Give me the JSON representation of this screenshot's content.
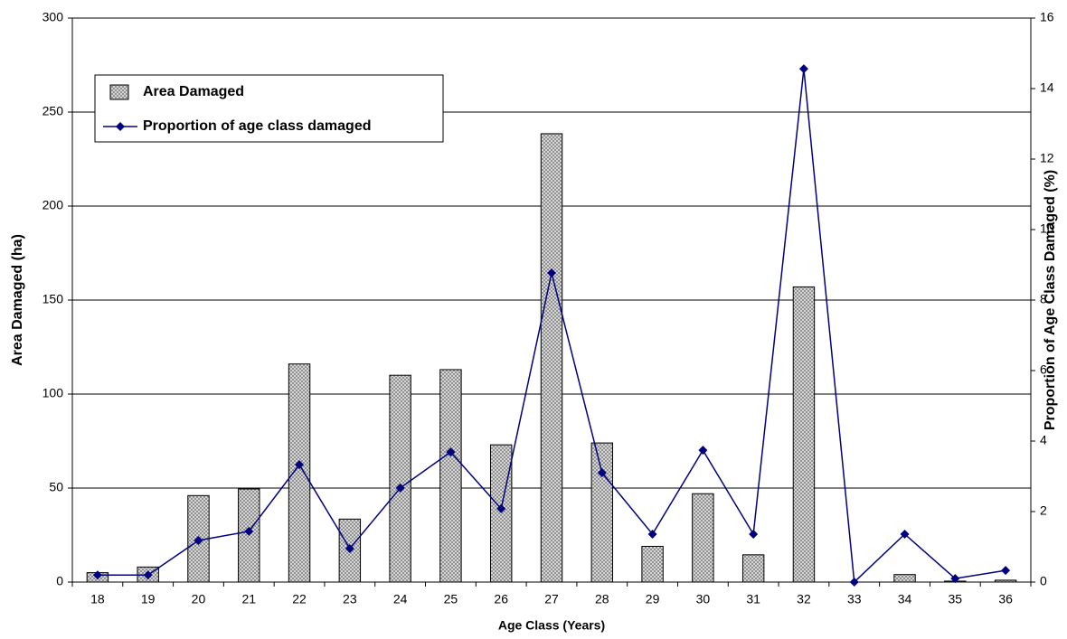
{
  "chart_data": {
    "type": "bar_line",
    "x_label": "Age Class (Years)",
    "y_label": "Area Damaged (ha)",
    "y2_label": "Proportion of Age Class Damaged (%)",
    "categories": [
      "18",
      "19",
      "20",
      "21",
      "22",
      "23",
      "24",
      "25",
      "26",
      "27",
      "28",
      "29",
      "30",
      "31",
      "32",
      "33",
      "34",
      "35",
      "36"
    ],
    "series": [
      {
        "name": "Area Damaged",
        "type": "bar",
        "color": "#c0c0c0",
        "values": [
          5,
          8,
          46,
          49.5,
          116,
          33.5,
          110,
          113,
          73,
          238.5,
          74,
          19,
          47,
          14.5,
          157,
          0,
          4,
          0.5,
          1
        ]
      },
      {
        "name": "Proportion of age class damaged",
        "type": "line",
        "axis": "y2",
        "color": "#000080",
        "values": [
          0.2,
          0.2,
          1.18,
          1.44,
          3.33,
          0.95,
          2.67,
          3.69,
          2.08,
          8.77,
          3.1,
          1.36,
          3.74,
          1.36,
          14.56,
          0,
          1.36,
          0.1,
          0.33
        ]
      }
    ],
    "ylim": [
      0,
      300
    ],
    "yticks": [
      0,
      50,
      100,
      150,
      200,
      250,
      300
    ],
    "y2lim": [
      0,
      16
    ],
    "y2ticks": [
      0,
      2,
      4,
      6,
      8,
      10,
      12,
      14,
      16
    ],
    "grid": true
  }
}
